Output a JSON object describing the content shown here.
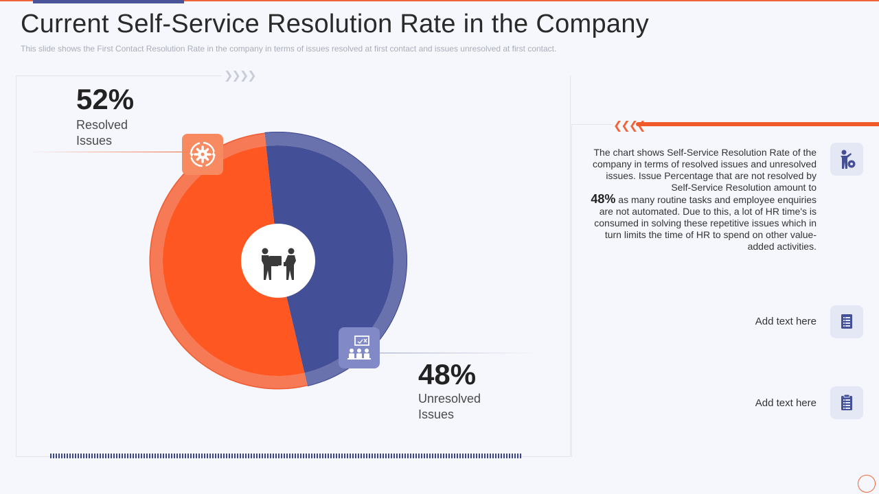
{
  "header": {
    "title": "Current Self-Service Resolution Rate in the Company",
    "subtitle": "This slide shows the First Contact Resolution Rate in the company in terms of issues resolved at first contact and issues unresolved  at first contact."
  },
  "chart_data": {
    "type": "pie",
    "title": "",
    "slices": [
      {
        "label": "Resolved Issues",
        "value": 52,
        "display": "52%",
        "color": "#ff5722"
      },
      {
        "label": "Unresolved Issues",
        "value": 48,
        "display": "48%",
        "color": "#434f96"
      }
    ]
  },
  "labels": {
    "resolved": {
      "pct": "52%",
      "line1": "Resolved",
      "line2": "Issues"
    },
    "unresolved": {
      "pct": "48%",
      "line1": "Unresolved",
      "line2": "Issues"
    }
  },
  "description": {
    "part1": "The chart shows Self-Service Resolution Rate of the company in terms of resolved issues and unresolved issues. Issue Percentage that are not resolved by Self-Service Resolution amount to",
    "highlight": "48%",
    "part2": " as many routine tasks and employee enquiries are not automated. Due to this, a lot of HR time's is consumed in solving these repetitive issues which in turn limits the time of HR to spend on other value-added activities."
  },
  "side_items": [
    {
      "text": "Add text here",
      "icon": "document-icon"
    },
    {
      "text": "Add text here",
      "icon": "clipboard-icon"
    }
  ],
  "colors": {
    "accent": "#f05a2a",
    "navy": "#434f96",
    "orange": "#ff5722"
  },
  "icons": {
    "center": "handover-icon",
    "resolved": "gear-cycle-icon",
    "unresolved": "team-presentation-icon",
    "description": "person-gear-icon"
  }
}
